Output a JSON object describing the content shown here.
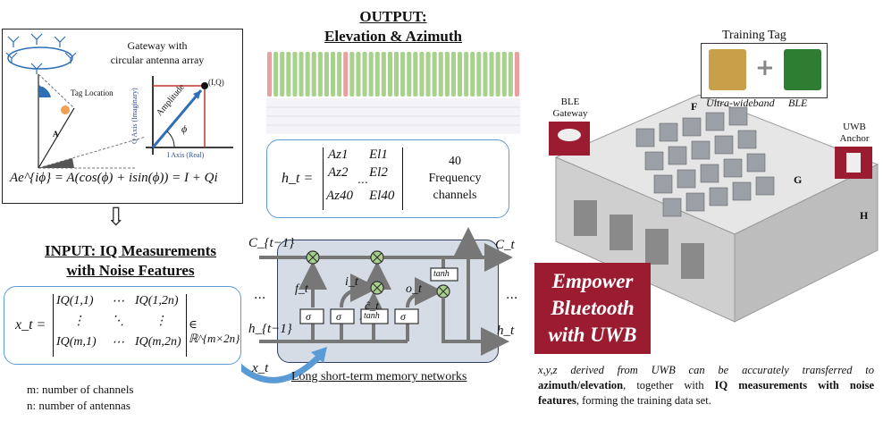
{
  "iq_panel": {
    "gateway_label_1": "Gateway with",
    "gateway_label_2": "circular antenna array",
    "tag_location": "Tag Location",
    "angle_e": "E",
    "angle_a": "A",
    "iq_point": "(I,Q)",
    "q_axis": "Q Axis (Imaginary)",
    "i_axis": "I Axis (Real)",
    "amplitude": "Amplitude",
    "phi": "ϕ",
    "euler_eq": "Ae^{iϕ} = A(cos(ϕ) + isin(ϕ)) = I + Qi"
  },
  "input": {
    "arrow_glyph": "⇩",
    "title_1": "INPUT: IQ Measurements",
    "title_2": "with Noise Features",
    "lhs": "x_t =",
    "m11": "IQ(1,1)",
    "m1dots": "⋯",
    "m1n": "IQ(1,2n)",
    "v1": "⋮",
    "d1": "⋱",
    "v2": "⋮",
    "mm1": "IQ(m,1)",
    "mmdots": "⋯",
    "mmn": "IQ(m,2n)",
    "domain": "∈ ℝ^{m×2n}",
    "legend_m": "m: number of channels",
    "legend_n": "n: number of antennas"
  },
  "output": {
    "title_1": "OUTPUT:",
    "title_2": "Elevation & Azimuth",
    "lhs": "h_t =",
    "az1": "Az1",
    "el1": "El1",
    "az2": "Az2",
    "el2": "El2",
    "dots": "⋯",
    "az40": "Az40",
    "el40": "El40",
    "channels_1": "40",
    "channels_2": "Frequency",
    "channels_3": "channels"
  },
  "lstm": {
    "c_prev": "C_{t−1}",
    "c_t": "C_t",
    "h_prev": "h_{t−1}",
    "h_t": "h_t",
    "x_t": "x_t",
    "f_t": "f_t",
    "i_t": "i_t",
    "c_hat": "ĉ_t",
    "o_t": "o_t",
    "sigma": "σ",
    "tanh": "tanh",
    "ellipsis": "...",
    "caption": "Long short-term memory networks"
  },
  "right": {
    "training_tag": "Training Tag",
    "uwb_label": "Ultra-wideband",
    "ble_label": "BLE",
    "ble_gateway_1": "BLE",
    "ble_gateway_2": "Gateway",
    "uwb_anchor_1": "UWB",
    "uwb_anchor_2": "Anchor",
    "zone_f": "F",
    "zone_g": "G",
    "zone_h": "H",
    "badge_1": "Empower",
    "badge_2": "Bluetooth",
    "badge_3": "with UWB",
    "desc_1": "x,y,z derived from UWB can be accurately transferred to",
    "desc_2a": "azimuth/elevation",
    "desc_2b": ", together with ",
    "desc_2c": "IQ measurements with noise",
    "desc_3a": "features",
    "desc_3b": ", forming the training data set."
  },
  "colors": {
    "accent_blue": "#5b9bd5",
    "badge_red": "#9b1c31",
    "green_bar": "#a9d18e",
    "red_bar": "#e8a0a0",
    "lstm_fill": "#d6dce5"
  }
}
